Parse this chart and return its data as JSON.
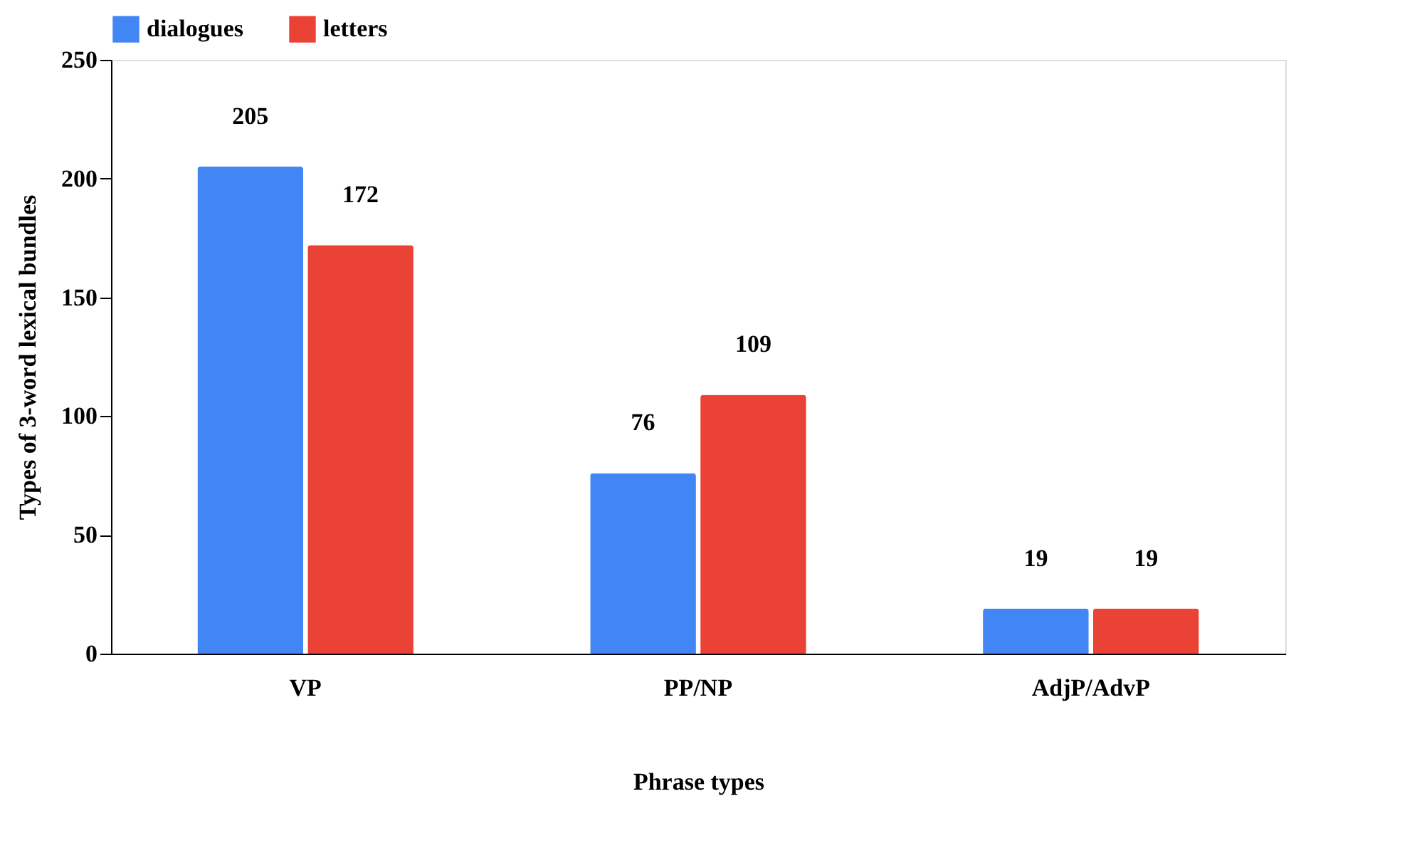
{
  "chart_data": {
    "type": "bar",
    "xlabel": "Phrase types",
    "ylabel": "Types of 3-word lexical bundles",
    "categories": [
      "VP",
      "PP/NP",
      "AdjP/AdvP"
    ],
    "series": [
      {
        "name": "dialogues",
        "color": "#4285f4",
        "values": [
          205,
          76,
          19
        ]
      },
      {
        "name": "letters",
        "color": "#ea4335",
        "values": [
          172,
          109,
          19
        ]
      }
    ],
    "ylim": [
      0,
      250
    ],
    "yticks": [
      0,
      50,
      100,
      150,
      200,
      250
    ],
    "grid": false,
    "legend": "top",
    "data_labels": true
  }
}
